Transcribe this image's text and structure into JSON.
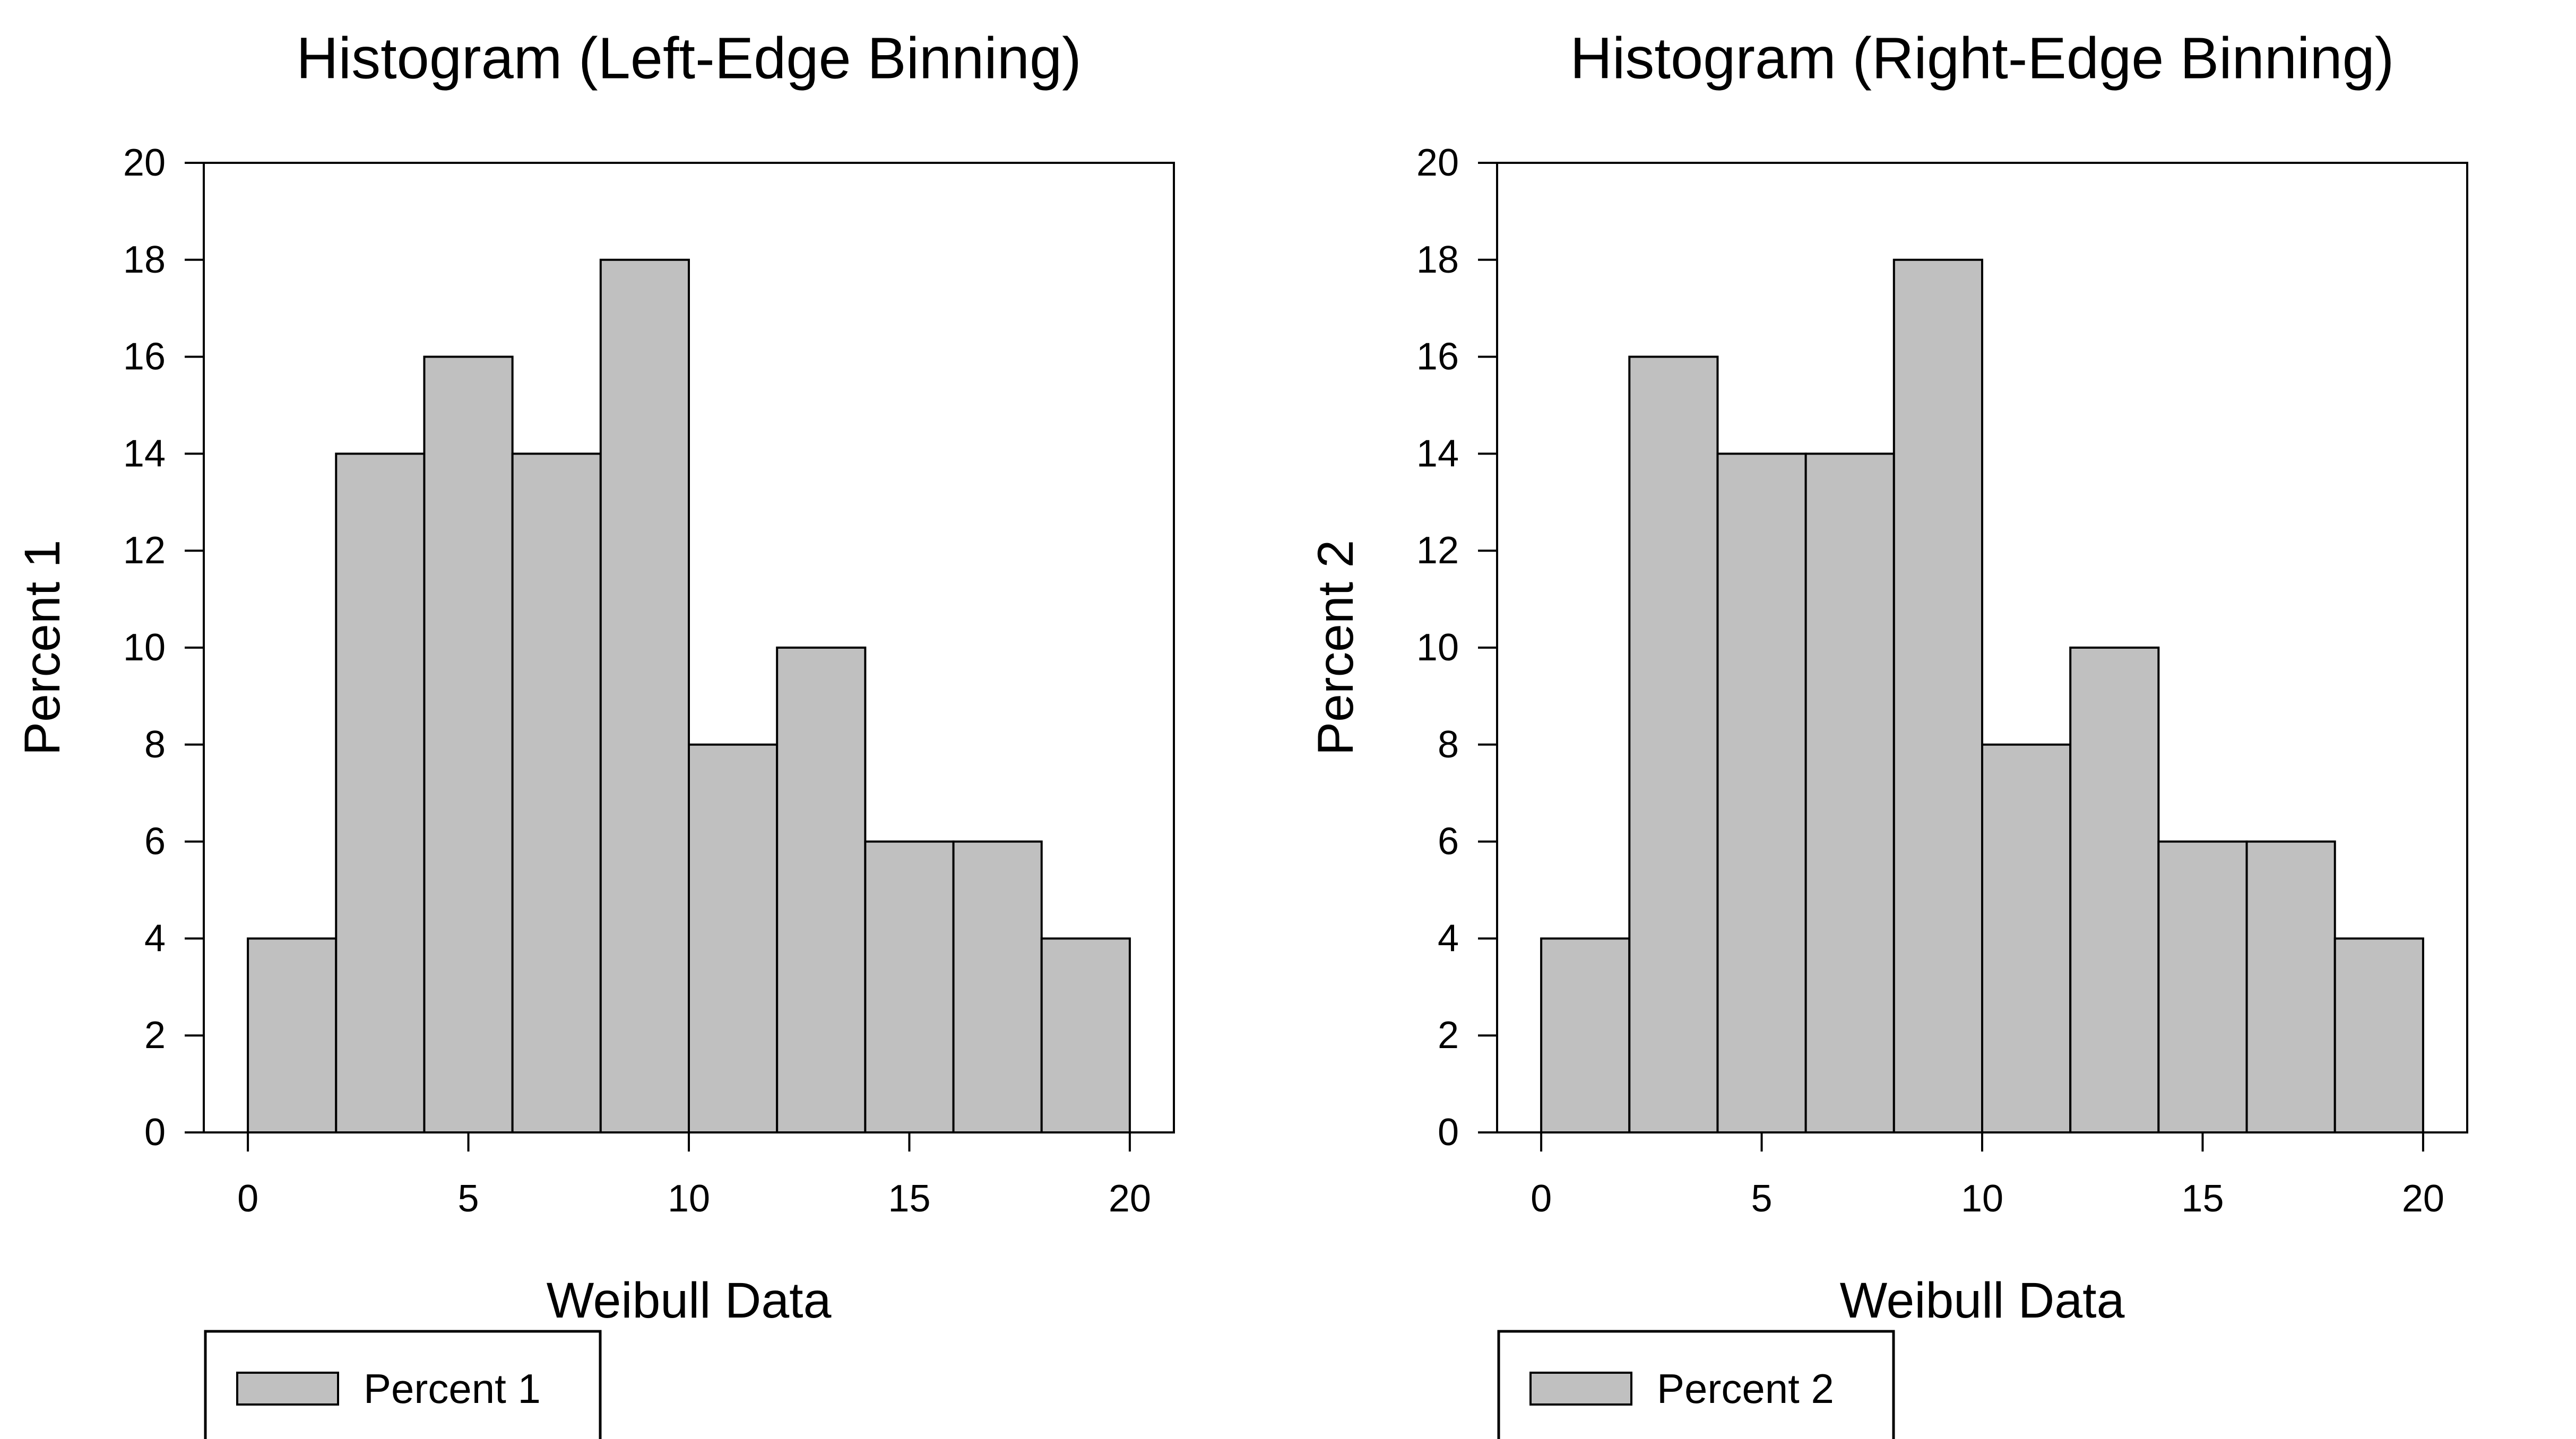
{
  "chart_data": [
    {
      "type": "bar",
      "title": "Histogram (Left-Edge Binning)",
      "xlabel": "Weibull Data",
      "ylabel": "Percent 1",
      "bin_edges": [
        0,
        2,
        4,
        6,
        8,
        10,
        12,
        14,
        16,
        18,
        20
      ],
      "series": [
        {
          "name": "Percent 1",
          "values": [
            4,
            14,
            16,
            14,
            18,
            8,
            10,
            6,
            6,
            4
          ]
        }
      ],
      "xlim": [
        -1,
        21
      ],
      "ylim": [
        0,
        20
      ],
      "xticks": [
        0,
        5,
        10,
        15,
        20
      ],
      "yticks": [
        0,
        2,
        4,
        6,
        8,
        10,
        12,
        14,
        16,
        18,
        20
      ],
      "bar_color": "#c0c0c0",
      "grid": false,
      "legend_position": "bottom-left"
    },
    {
      "type": "bar",
      "title": "Histogram (Right-Edge Binning)",
      "xlabel": "Weibull Data",
      "ylabel": "Percent 2",
      "bin_edges": [
        0,
        2,
        4,
        6,
        8,
        10,
        12,
        14,
        16,
        18,
        20
      ],
      "series": [
        {
          "name": "Percent 2",
          "values": [
            4,
            16,
            14,
            14,
            18,
            8,
            10,
            6,
            6,
            4
          ]
        }
      ],
      "xlim": [
        -1,
        21
      ],
      "ylim": [
        0,
        20
      ],
      "xticks": [
        0,
        5,
        10,
        15,
        20
      ],
      "yticks": [
        0,
        2,
        4,
        6,
        8,
        10,
        12,
        14,
        16,
        18,
        20
      ],
      "bar_color": "#c0c0c0",
      "grid": false,
      "legend_position": "bottom-left"
    }
  ]
}
